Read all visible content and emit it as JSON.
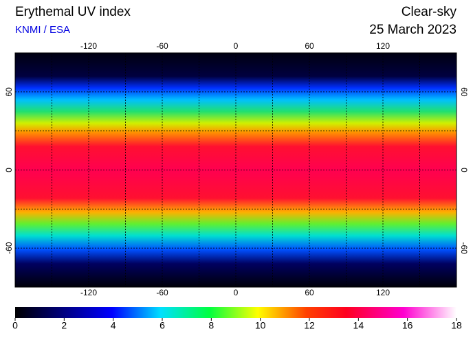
{
  "header": {
    "title": "Erythemal UV index",
    "source": "KNMI / ESA",
    "condition": "Clear-sky",
    "date": "25 March 2023"
  },
  "map": {
    "lonlim": [
      -180,
      180
    ],
    "latlim": [
      -90,
      90
    ],
    "lonticks": [
      -120,
      -60,
      0,
      60,
      120
    ],
    "latticks": [
      -60,
      0,
      60
    ],
    "grid_lon": [
      -150,
      -120,
      -90,
      -60,
      -30,
      0,
      30,
      60,
      90,
      120,
      150
    ],
    "grid_lat": [
      -60,
      -30,
      0,
      30,
      60
    ]
  },
  "colorbar": {
    "lim": [
      0,
      18
    ],
    "ticks": [
      0,
      2,
      4,
      6,
      8,
      10,
      12,
      14,
      16,
      18
    ]
  }
}
